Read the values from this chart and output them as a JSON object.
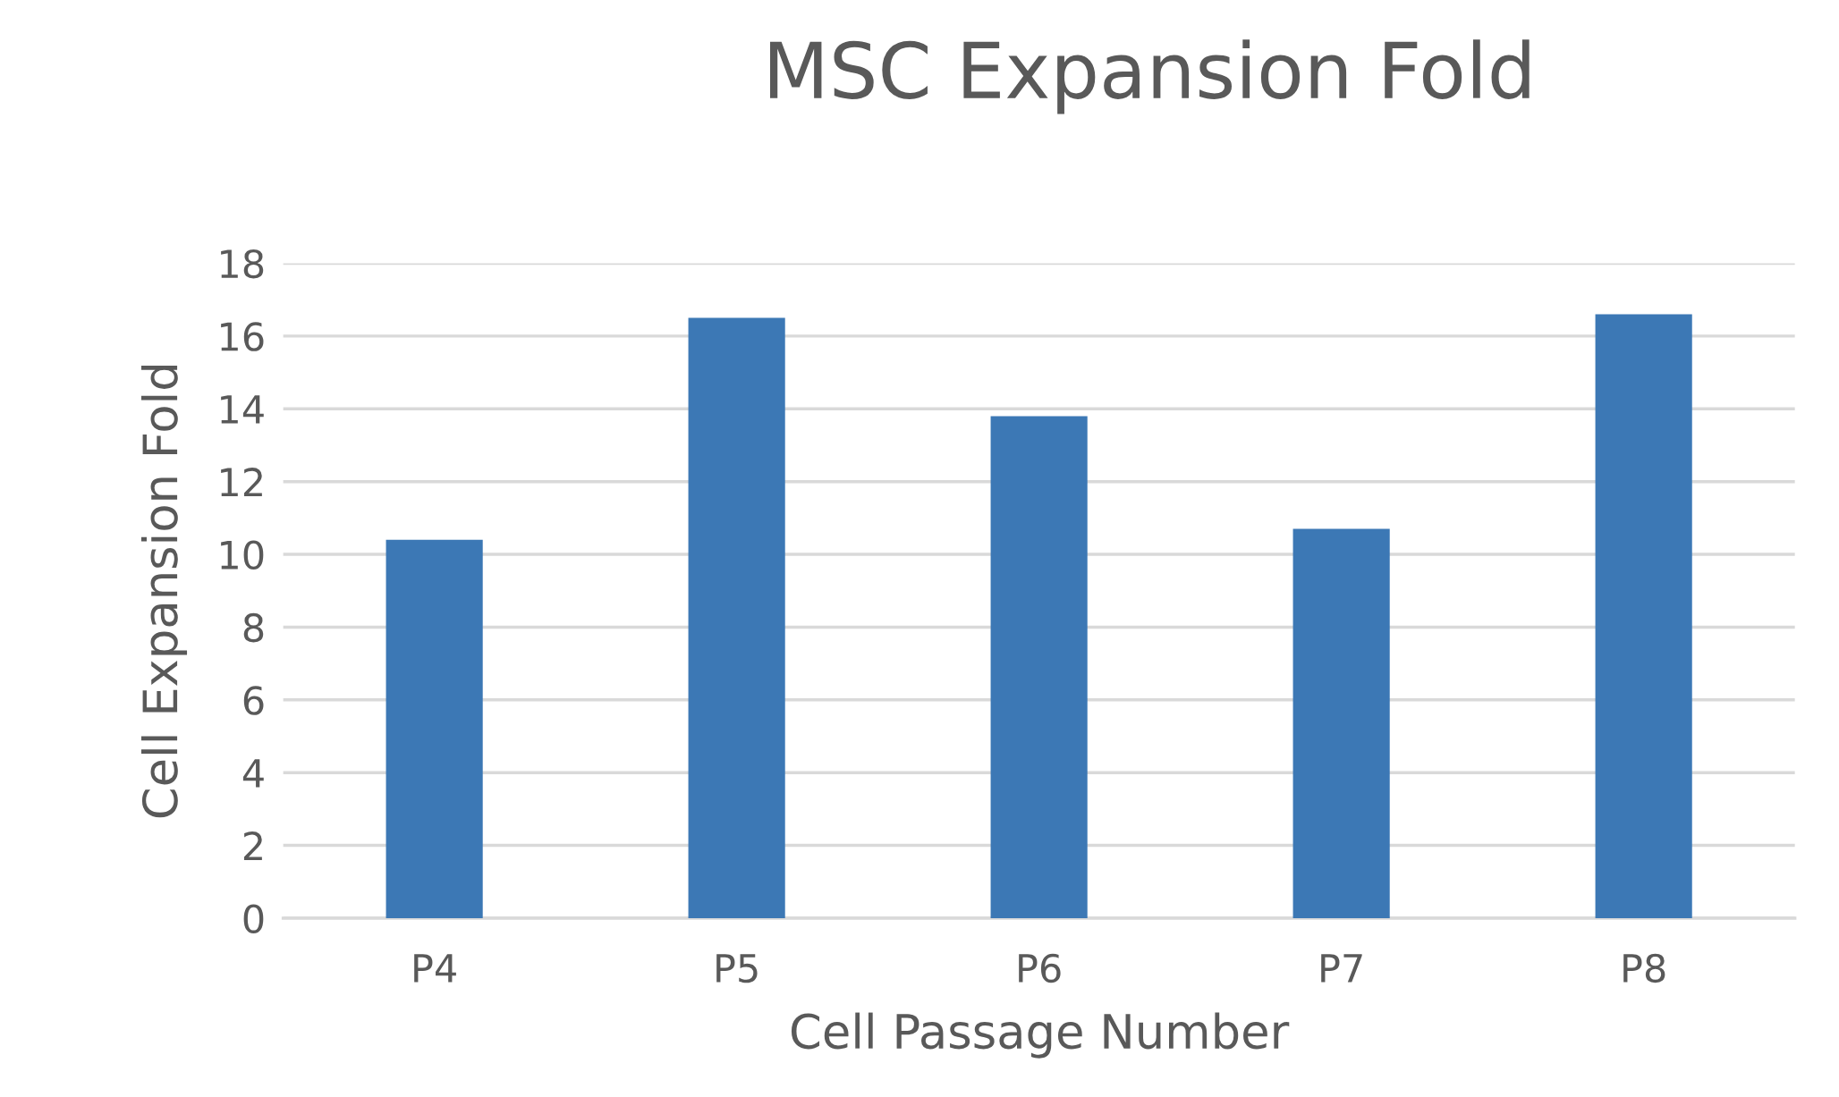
{
  "chart_data": {
    "type": "bar",
    "title": "MSC Expansion Fold",
    "xlabel": "Cell Passage Number",
    "ylabel": "Cell Expansion Fold",
    "categories": [
      "P4",
      "P5",
      "P6",
      "P7",
      "P8"
    ],
    "values": [
      10.4,
      16.5,
      13.8,
      10.7,
      16.6
    ],
    "color": "#3c78b5",
    "ylim": [
      0,
      18
    ],
    "yticks": [
      0,
      2,
      4,
      6,
      8,
      10,
      12,
      14,
      16,
      18
    ],
    "grid": "y",
    "legend": false
  }
}
